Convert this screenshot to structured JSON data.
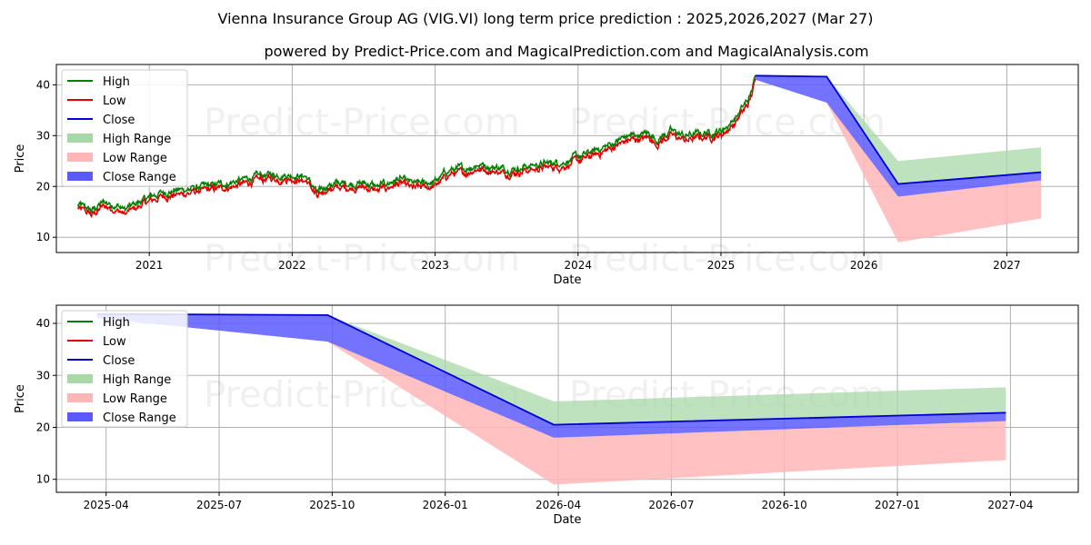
{
  "title": "Vienna Insurance Group AG (VIG.VI) long term price prediction : 2025,2026,2027 (Mar 27)",
  "subtitle": "powered by Predict-Price.com and MagicalPrediction.com and MagicalAnalysis.com",
  "watermark": "Predict-Price.com",
  "colors": {
    "high": "#008000",
    "low": "#e00000",
    "close": "#0000cc",
    "high_range": "#a8d8a8",
    "low_range": "#ffb6b6",
    "close_range": "#5a5aff",
    "grid": "#b0b0b0"
  },
  "chart_data": [
    {
      "type": "line",
      "panel": "top",
      "xlabel": "Date",
      "ylabel": "Price",
      "xlim": [
        2020.35,
        2027.5
      ],
      "ylim": [
        7,
        44
      ],
      "xticks": [
        2021,
        2022,
        2023,
        2024,
        2025,
        2026,
        2027
      ],
      "xtick_labels": [
        "2021",
        "2022",
        "2023",
        "2024",
        "2025",
        "2026",
        "2027"
      ],
      "yticks": [
        10,
        20,
        30,
        40
      ],
      "legend": {
        "position": "top-left",
        "entries": [
          "High",
          "Low",
          "Close",
          "High Range",
          "Low Range",
          "Close Range"
        ]
      },
      "history_anchors": {
        "x": [
          2020.5,
          2020.6,
          2020.68,
          2020.75,
          2020.83,
          2021.0,
          2021.1,
          2021.25,
          2021.5,
          2021.6,
          2021.8,
          2022.0,
          2022.1,
          2022.18,
          2022.25,
          2022.5,
          2022.6,
          2022.75,
          2022.85,
          2023.0,
          2023.1,
          2023.2,
          2023.3,
          2023.5,
          2023.75,
          2023.9,
          2024.0,
          2024.2,
          2024.35,
          2024.5,
          2024.55,
          2024.65,
          2024.75,
          2024.85,
          2025.0,
          2025.1,
          2025.2,
          2025.24
        ],
        "y": [
          16,
          14.8,
          16.5,
          16.2,
          15,
          17.5,
          18.5,
          19,
          20,
          20.5,
          21.8,
          22,
          21.5,
          18,
          20,
          20.3,
          19.5,
          21,
          20,
          20.5,
          22.8,
          23,
          24,
          23,
          24,
          24.5,
          25.3,
          27.5,
          29.5,
          30,
          28.8,
          30.5,
          29.5,
          30,
          30.5,
          33,
          37,
          41
        ]
      },
      "forecast": {
        "x": [
          2025.24,
          2025.74,
          2026.24,
          2027.24
        ],
        "close": [
          41.8,
          41.6,
          20.5,
          22.8
        ],
        "high_range_upper": [
          41.8,
          41.6,
          25,
          27.7
        ],
        "low_range_lower": [
          41,
          36.5,
          9,
          13.7
        ],
        "close_range_upper": [
          41.8,
          41.6,
          20.5,
          22.8
        ],
        "close_range_lower": [
          41,
          36.5,
          18,
          21.2
        ]
      }
    },
    {
      "type": "line",
      "panel": "bottom",
      "xlabel": "Date",
      "ylabel": "Price",
      "xlim": [
        2025.14,
        2027.4
      ],
      "ylim": [
        7.5,
        43.5
      ],
      "xticks": [
        2025.25,
        2025.5,
        2025.75,
        2026.0,
        2026.25,
        2026.5,
        2026.75,
        2027.0,
        2027.25
      ],
      "xtick_labels": [
        "2025-04",
        "2025-07",
        "2025-10",
        "2026-01",
        "2026-04",
        "2026-07",
        "2026-10",
        "2027-01",
        "2027-04"
      ],
      "yticks": [
        10,
        20,
        30,
        40
      ],
      "legend": {
        "position": "top-left",
        "entries": [
          "High",
          "Low",
          "Close",
          "High Range",
          "Low Range",
          "Close Range"
        ]
      },
      "forecast": {
        "x": [
          2025.23,
          2025.74,
          2026.24,
          2027.24
        ],
        "close": [
          41.8,
          41.6,
          20.5,
          22.8
        ],
        "high_range_upper": [
          41.8,
          41.6,
          25,
          27.7
        ],
        "low_range_lower": [
          41,
          36.5,
          9,
          13.7
        ],
        "close_range_upper": [
          41.8,
          41.6,
          20.5,
          22.8
        ],
        "close_range_lower": [
          41,
          36.5,
          18,
          21.2
        ]
      }
    }
  ]
}
